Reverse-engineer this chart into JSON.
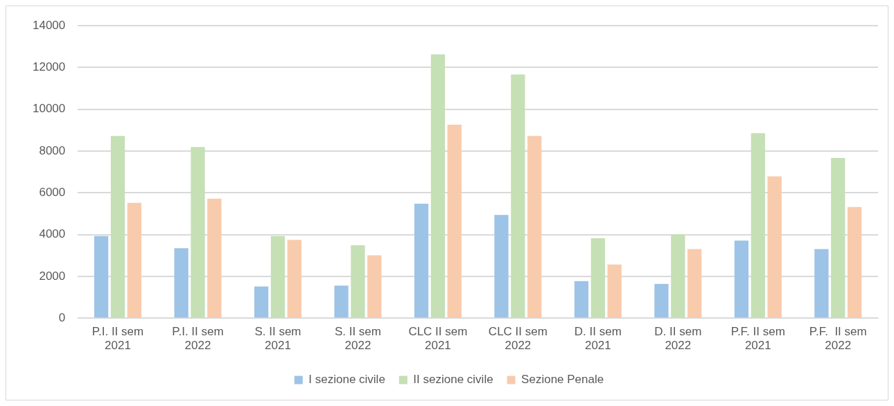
{
  "chart_data": {
    "type": "bar",
    "categories": [
      "P.I. II sem 2021",
      "P.I. II sem 2022",
      "S. II sem 2021",
      "S. II sem 2022",
      "CLC II sem 2021",
      "CLC II sem 2022",
      "D. II sem 2021",
      "D. II sem 2022",
      "P.F. II sem 2021",
      "P.F.  II sem 2022"
    ],
    "series": [
      {
        "name": "I sezione civile",
        "color": "#9dc3e6",
        "values": [
          3930,
          3350,
          1520,
          1560,
          5480,
          4940,
          1770,
          1640,
          3710,
          3310
        ]
      },
      {
        "name": "II sezione civile",
        "color": "#c5e0b4",
        "values": [
          8720,
          8190,
          3930,
          3490,
          12630,
          11670,
          3830,
          4010,
          8860,
          7670
        ]
      },
      {
        "name": "Sezione Penale",
        "color": "#f8cbad",
        "values": [
          5520,
          5720,
          3750,
          3010,
          9260,
          8720,
          2570,
          3310,
          6790,
          5320
        ]
      }
    ],
    "ylim": [
      0,
      14000
    ],
    "yticks": [
      0,
      2000,
      4000,
      6000,
      8000,
      10000,
      12000,
      14000
    ],
    "grid": "y",
    "legend": "bottom"
  }
}
